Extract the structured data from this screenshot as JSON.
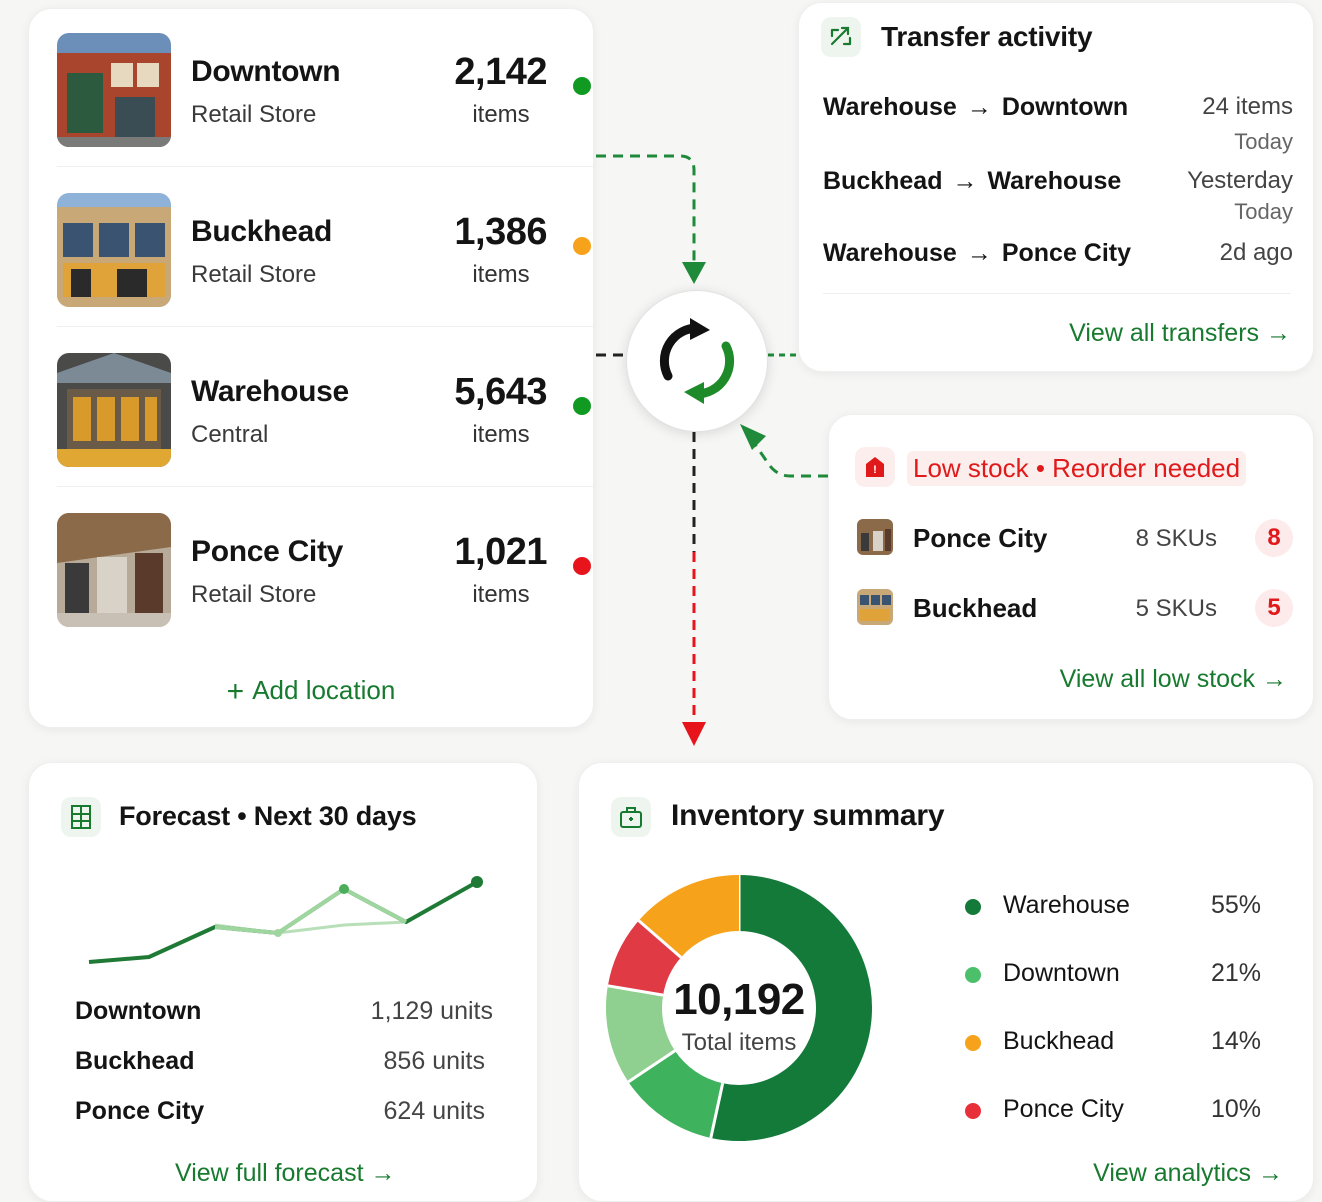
{
  "locations": [
    {
      "name": "Downtown",
      "type": "Retail Store",
      "count": "2,142",
      "unit": "items",
      "status": "green",
      "status_color": "#119a22"
    },
    {
      "name": "Buckhead",
      "type": "Retail Store",
      "count": "1,386",
      "unit": "items",
      "status": "orange",
      "status_color": "#f6a21a"
    },
    {
      "name": "Warehouse",
      "type": "Central",
      "count": "5,643",
      "unit": "items",
      "status": "green",
      "status_color": "#119a22"
    },
    {
      "name": "Ponce City",
      "type": "Retail Store",
      "count": "1,021",
      "unit": "items",
      "status": "red",
      "status_color": "#e8141c"
    }
  ],
  "add_location_label": "Add location",
  "transfers": {
    "title": "Transfer activity",
    "rows": [
      {
        "from": "Warehouse",
        "to": "Downtown",
        "meta": "24 items",
        "meta2": "Today"
      },
      {
        "from": "Buckhead",
        "to": "Warehouse",
        "meta": "Yesterday",
        "meta2": "Today"
      },
      {
        "from": "Warehouse",
        "to": "Ponce City",
        "meta": "2d ago",
        "meta2": ""
      }
    ],
    "view_all": "View all transfers"
  },
  "low_stock": {
    "title": "Low stock • Reorder needed",
    "rows": [
      {
        "name": "Ponce City",
        "skus": "8 SKUs",
        "badge": "8"
      },
      {
        "name": "Buckhead",
        "skus": "5 SKUs",
        "badge": "5"
      }
    ],
    "view_all": "View all low stock"
  },
  "forecast": {
    "title": "Forecast • Next 30 days",
    "rows": [
      {
        "name": "Downtown",
        "value": "1,129 units"
      },
      {
        "name": "Buckhead",
        "value": "856 units"
      },
      {
        "name": "Ponce City",
        "value": "624 units"
      }
    ],
    "view_full": "View full forecast"
  },
  "summary": {
    "title": "Inventory summary",
    "total": "10,192",
    "total_label": "Total items",
    "legend": [
      {
        "name": "Warehouse",
        "pct": "55%",
        "value": 55,
        "color": "#137a3a"
      },
      {
        "name": "Downtown",
        "pct": "21%",
        "value": 21,
        "color": "#4cbf6a"
      },
      {
        "name": "Buckhead",
        "pct": "14%",
        "value": 14,
        "color": "#f6a21a"
      },
      {
        "name": "Ponce City",
        "pct": "10%",
        "value": 10,
        "color": "#e8303a"
      }
    ],
    "view_analytics": "View analytics"
  },
  "colors": {
    "accent": "#187a2f",
    "danger": "#e01a1a"
  }
}
